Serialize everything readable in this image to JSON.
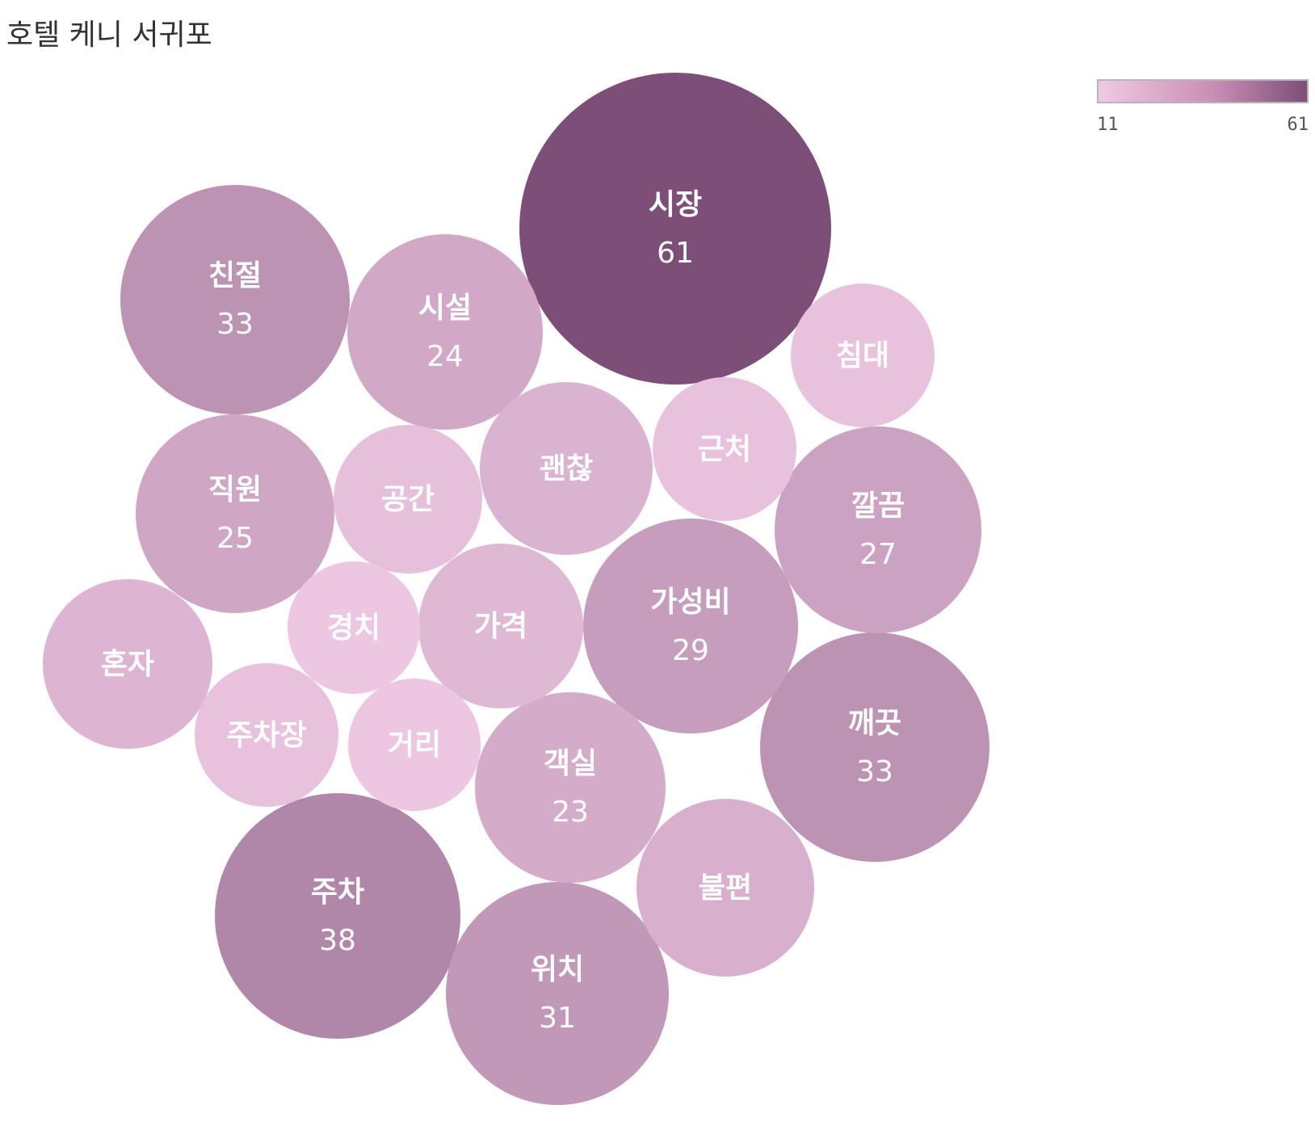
{
  "title": "호텔 케니 서귀포",
  "legend": {
    "min_label": "11",
    "max_label": "61",
    "color_low": "#efc9e3",
    "color_high": "#7d4e78"
  },
  "chart_data": {
    "type": "bubble",
    "color_scale": {
      "min": 11,
      "max": 61
    },
    "bubbles": [
      {
        "label": "시장",
        "value": 61,
        "show_value": true
      },
      {
        "label": "주차",
        "value": 38,
        "show_value": true
      },
      {
        "label": "친절",
        "value": 33,
        "show_value": true
      },
      {
        "label": "깨끗",
        "value": 33,
        "show_value": true
      },
      {
        "label": "위치",
        "value": 31,
        "show_value": true
      },
      {
        "label": "가성비",
        "value": 29,
        "show_value": true
      },
      {
        "label": "깔끔",
        "value": 27,
        "show_value": true
      },
      {
        "label": "직원",
        "value": 25,
        "show_value": true
      },
      {
        "label": "시설",
        "value": 24,
        "show_value": true
      },
      {
        "label": "객실",
        "value": 23,
        "show_value": true
      },
      {
        "label": "불편",
        "value": 21,
        "show_value": false
      },
      {
        "label": "괜찮",
        "value": 20,
        "show_value": false
      },
      {
        "label": "혼자",
        "value": 19,
        "show_value": false
      },
      {
        "label": "가격",
        "value": 18,
        "show_value": false
      },
      {
        "label": "공간",
        "value": 15,
        "show_value": false
      },
      {
        "label": "침대",
        "value": 14,
        "show_value": false
      },
      {
        "label": "근처",
        "value": 14,
        "show_value": false
      },
      {
        "label": "주차장",
        "value": 14,
        "show_value": false
      },
      {
        "label": "경치",
        "value": 12,
        "show_value": false
      },
      {
        "label": "거리",
        "value": 12,
        "show_value": false
      }
    ]
  }
}
